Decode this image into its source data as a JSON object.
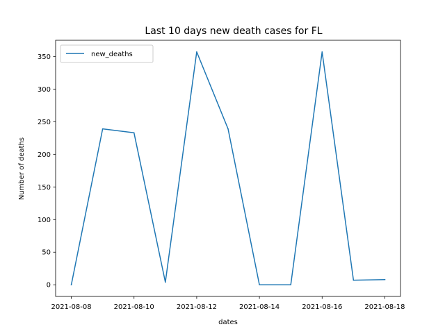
{
  "chart_data": {
    "type": "line",
    "title": "Last 10 days new death cases for FL",
    "xlabel": "dates",
    "ylabel": "Number of deaths",
    "x": [
      "2021-08-08",
      "2021-08-09",
      "2021-08-10",
      "2021-08-11",
      "2021-08-12",
      "2021-08-13",
      "2021-08-14",
      "2021-08-15",
      "2021-08-16",
      "2021-08-17",
      "2021-08-18"
    ],
    "series": [
      {
        "name": "new_deaths",
        "values": [
          0,
          239,
          233,
          4,
          357,
          239,
          0,
          0,
          357,
          7,
          8
        ]
      }
    ],
    "xticks": [
      "2021-08-08",
      "2021-08-10",
      "2021-08-12",
      "2021-08-14",
      "2021-08-16",
      "2021-08-18"
    ],
    "yticks": [
      0,
      50,
      100,
      150,
      200,
      250,
      300,
      350
    ],
    "xlim": [
      "2021-08-07T12:00",
      "2021-08-18T12:00"
    ],
    "ylim": [
      -17.85,
      374.85
    ],
    "grid": false,
    "legend_position": "top-left",
    "colors": {
      "line": "#1f77b4",
      "axes": "#000000",
      "legend_border": "#cccccc"
    }
  }
}
